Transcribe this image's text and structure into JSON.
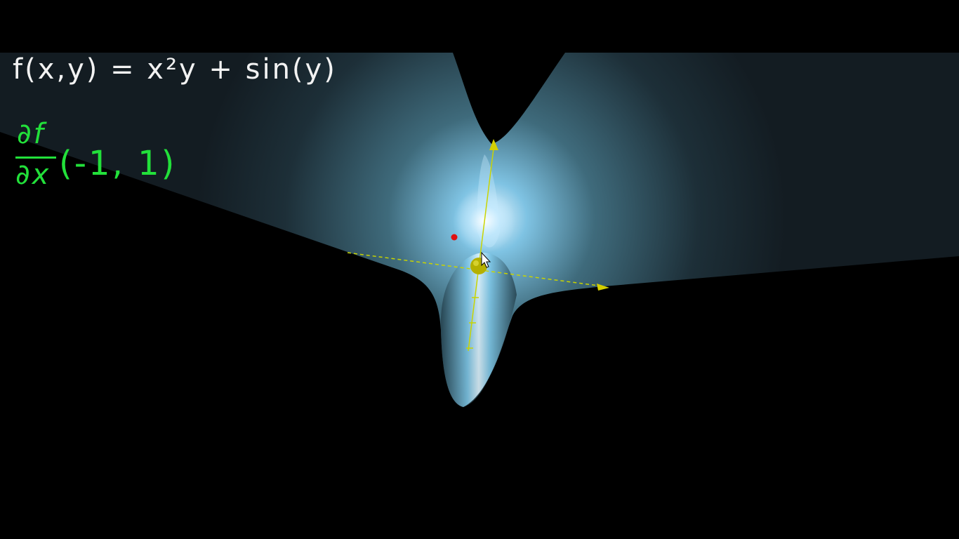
{
  "formula": {
    "text": "f(x,y) = x²y + sin(y)",
    "color": "#f2f2f2"
  },
  "partial_derivative": {
    "numerator": "∂f",
    "denominator": "∂x",
    "arguments": "(-1, 1)",
    "color": "#22e03a"
  },
  "colors": {
    "background": "#000000",
    "surface_dark": "#15202a",
    "surface_glow": "#bfe6ff",
    "trace_line": "#c9d400",
    "point": "#b5b000",
    "marker": "#e01010"
  },
  "icons": [
    "mouse-cursor-icon",
    "axis-arrow-icon"
  ]
}
